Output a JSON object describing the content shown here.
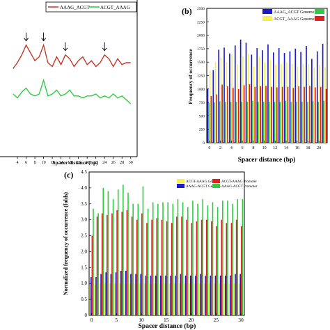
{
  "chart_data": [
    {
      "panel": "a",
      "type": "line",
      "xlabel": "Spacer distance (bp)",
      "ylabel": "",
      "xlim": [
        0,
        31
      ],
      "ylim": [
        0,
        4
      ],
      "x_ticks": [
        4,
        6,
        8,
        10,
        12,
        14,
        16,
        18,
        20,
        22,
        24,
        26,
        28,
        30
      ],
      "legend": "top-right",
      "colors": {
        "AAAG_ACGT": "#c0392b",
        "ACGT_AAAG": "#2ecc40"
      },
      "series": [
        {
          "name": "AAAG_ACGT",
          "x": [
            3,
            4,
            5,
            6,
            7,
            8,
            9,
            10,
            11,
            12,
            13,
            14,
            15,
            16,
            17,
            18,
            19,
            20,
            21,
            22,
            23,
            24,
            25,
            26,
            27,
            28,
            29,
            30
          ],
          "values": [
            2.25,
            2.4,
            2.6,
            2.85,
            2.65,
            2.45,
            2.55,
            2.85,
            2.4,
            2.3,
            2.55,
            2.35,
            2.6,
            2.5,
            2.3,
            2.45,
            2.55,
            2.35,
            2.45,
            2.3,
            2.4,
            2.6,
            2.5,
            2.3,
            2.5,
            2.35,
            2.4,
            2.4
          ]
        },
        {
          "name": "ACGT_AAAG",
          "x": [
            3,
            4,
            5,
            6,
            7,
            8,
            9,
            10,
            11,
            12,
            13,
            14,
            15,
            16,
            17,
            18,
            19,
            20,
            21,
            22,
            23,
            24,
            25,
            26,
            27,
            28,
            29,
            30
          ],
          "values": [
            1.6,
            1.5,
            1.65,
            1.75,
            1.6,
            1.55,
            1.6,
            1.95,
            1.55,
            1.6,
            1.7,
            1.55,
            1.6,
            1.7,
            1.55,
            1.55,
            1.5,
            1.55,
            1.55,
            1.6,
            1.5,
            1.55,
            1.5,
            1.6,
            1.5,
            1.55,
            1.45,
            1.35
          ]
        }
      ],
      "arrows_at": [
        6,
        10,
        15,
        24
      ]
    },
    {
      "panel": "b",
      "panel_label": "(b)",
      "type": "bar",
      "xlabel": "Spacer distance (bp)",
      "ylabel": "Frequency of occurrence",
      "xlim": [
        -0.5,
        21.5
      ],
      "ylim": [
        0,
        2500
      ],
      "x_ticks": [
        0,
        2,
        4,
        6,
        8,
        10,
        12,
        14,
        16,
        18,
        20
      ],
      "y_ticks": [
        0,
        250,
        500,
        750,
        1000,
        1250,
        1500,
        1750,
        2000,
        2250,
        2500
      ],
      "legend": "top-center",
      "categories": [
        0,
        1,
        2,
        3,
        4,
        5,
        6,
        7,
        8,
        9,
        10,
        11,
        12,
        13,
        14,
        15,
        16,
        17,
        18,
        19,
        20,
        21
      ],
      "series": [
        {
          "name": "AAAG_ACGT Genome",
          "color": "#1a1acc",
          "values": [
            1000,
            1350,
            1730,
            1770,
            1660,
            1810,
            1920,
            1860,
            1640,
            1760,
            1720,
            1830,
            1680,
            1760,
            1670,
            1700,
            1750,
            1690,
            1800,
            1560,
            1700,
            1840
          ]
        },
        {
          "name": "",
          "color": "#2ecc40",
          "values": [
            740,
            750,
            770,
            760,
            760,
            760,
            760,
            760,
            780,
            760,
            760,
            760,
            760,
            760,
            780,
            760,
            760,
            760,
            760,
            770,
            760,
            780
          ]
        },
        {
          "name": "ACGT_AAAG Genome",
          "color": "#f5f05a",
          "values": [
            1340,
            1500,
            1580,
            1500,
            1640,
            1460,
            1610,
            1650,
            1420,
            1600,
            1500,
            1540,
            1460,
            1470,
            1500,
            1470,
            1420,
            1470,
            1460,
            1400,
            1450,
            1400
          ]
        },
        {
          "name": "",
          "color": "#e02020",
          "values": [
            870,
            900,
            1080,
            1050,
            1020,
            1000,
            1070,
            1090,
            1040,
            1050,
            1060,
            1040,
            1030,
            1040,
            1040,
            1020,
            1050,
            1040,
            1060,
            1030,
            1040,
            1000
          ]
        }
      ],
      "legend_entries": [
        "AAAG_ACGT Genome",
        "ACGT_AAAG Genome"
      ]
    },
    {
      "panel": "c",
      "panel_label": "(c)",
      "type": "bar",
      "xlabel": "Spacer distance (bp)",
      "ylabel": "Normalized frequency of occurrence (folds)",
      "xlim": [
        -0.5,
        30.7
      ],
      "ylim": [
        0,
        4.5
      ],
      "x_ticks": [
        0,
        5,
        10,
        15,
        20,
        25,
        30
      ],
      "y_ticks": [
        0.0,
        0.5,
        1.0,
        1.5,
        2.0,
        2.5,
        3.0,
        3.5,
        4.0,
        4.5
      ],
      "y_tick_labels": [
        "0",
        "0.5",
        "1.0",
        "1.5",
        "2.0",
        "2.5",
        "3.0",
        "3.5",
        "4.0",
        "4.5"
      ],
      "legend": "top-right",
      "categories": [
        0,
        1,
        2,
        3,
        4,
        5,
        6,
        7,
        8,
        9,
        10,
        11,
        12,
        13,
        14,
        15,
        16,
        17,
        18,
        19,
        20,
        21,
        22,
        23,
        24,
        25,
        26,
        27,
        28,
        29,
        30
      ],
      "series": [
        {
          "name": "ACGT-AAAG Genome",
          "color": "#f5f05a",
          "values": [
            0.95,
            0.95,
            1.0,
            1.0,
            1.0,
            1.0,
            1.0,
            1.0,
            1.0,
            1.0,
            1.0,
            1.0,
            1.0,
            1.0,
            1.0,
            1.0,
            1.0,
            1.0,
            1.0,
            1.0,
            1.0,
            1.0,
            1.0,
            1.0,
            1.0,
            1.0,
            1.0,
            1.0,
            1.0,
            1.0,
            1.0
          ]
        },
        {
          "name": "AAAG-ACGT Genome",
          "color": "#1a1acc",
          "values": [
            1.2,
            1.2,
            1.3,
            1.35,
            1.3,
            1.35,
            1.4,
            1.4,
            1.3,
            1.3,
            1.3,
            1.25,
            1.25,
            1.25,
            1.25,
            1.25,
            1.25,
            1.25,
            1.3,
            1.25,
            1.25,
            1.25,
            1.3,
            1.25,
            1.25,
            1.25,
            1.25,
            1.25,
            1.25,
            1.3,
            1.3
          ]
        },
        {
          "name": "ACGT-AAAG Promoter",
          "color": "#e02020",
          "values": [
            2.5,
            3.1,
            3.2,
            3.15,
            3.2,
            3.3,
            3.25,
            3.3,
            3.1,
            3.0,
            3.2,
            2.9,
            3.0,
            3.05,
            3.0,
            2.95,
            2.9,
            3.1,
            3.1,
            3.0,
            2.9,
            2.95,
            3.0,
            3.0,
            2.95,
            2.8,
            3.0,
            2.9,
            2.9,
            3.0,
            2.8
          ]
        },
        {
          "name": "AAAG-ACGT Promoter",
          "color": "#2ecc40",
          "values": [
            3.35,
            3.2,
            4.0,
            3.9,
            3.65,
            3.95,
            4.1,
            3.85,
            3.5,
            3.5,
            4.05,
            3.35,
            3.55,
            3.5,
            3.55,
            3.55,
            3.5,
            3.65,
            3.55,
            3.4,
            3.6,
            3.5,
            3.65,
            3.45,
            3.55,
            3.4,
            3.6,
            3.6,
            3.5,
            3.65,
            3.65
          ]
        }
      ]
    }
  ]
}
